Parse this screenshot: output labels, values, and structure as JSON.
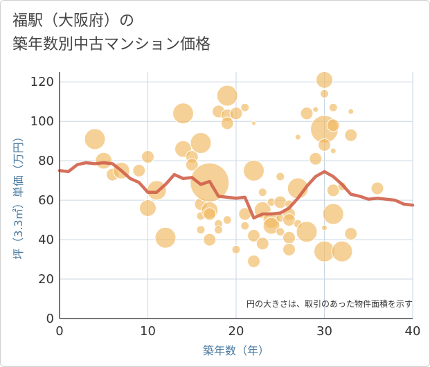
{
  "title_line1": "福駅（大阪府）の",
  "title_line2": "築年数別中古マンション価格",
  "chart_data": {
    "type": "scatter",
    "xlabel": "築年数（年）",
    "ylabel": "坪（3.3㎡）単価（万円）",
    "xlim": [
      0,
      40
    ],
    "ylim": [
      0,
      125
    ],
    "xticks": [
      0,
      10,
      20,
      30,
      40
    ],
    "yticks": [
      0,
      20,
      40,
      60,
      80,
      100,
      120
    ],
    "note": "円の大きさは、取引のあった物件面積を示す",
    "bubble_color": "#f0b860",
    "line_color": "#d0614a",
    "grid": true,
    "bubbles": [
      {
        "x": 4,
        "y": 91,
        "s": 15
      },
      {
        "x": 5,
        "y": 80,
        "s": 12
      },
      {
        "x": 6,
        "y": 73,
        "s": 9
      },
      {
        "x": 7,
        "y": 75,
        "s": 12
      },
      {
        "x": 9,
        "y": 75,
        "s": 9
      },
      {
        "x": 10,
        "y": 82,
        "s": 9
      },
      {
        "x": 10,
        "y": 56,
        "s": 12
      },
      {
        "x": 11,
        "y": 65,
        "s": 14
      },
      {
        "x": 12,
        "y": 41,
        "s": 15
      },
      {
        "x": 14,
        "y": 104,
        "s": 15
      },
      {
        "x": 14,
        "y": 86,
        "s": 12
      },
      {
        "x": 15,
        "y": 82,
        "s": 9
      },
      {
        "x": 15,
        "y": 78,
        "s": 9
      },
      {
        "x": 16,
        "y": 89,
        "s": 15
      },
      {
        "x": 16,
        "y": 58,
        "s": 9
      },
      {
        "x": 16,
        "y": 52,
        "s": 6
      },
      {
        "x": 16,
        "y": 45,
        "s": 6
      },
      {
        "x": 17,
        "y": 69,
        "s": 28
      },
      {
        "x": 17,
        "y": 55,
        "s": 12
      },
      {
        "x": 17,
        "y": 53,
        "s": 9
      },
      {
        "x": 17,
        "y": 40,
        "s": 9
      },
      {
        "x": 18,
        "y": 105,
        "s": 9
      },
      {
        "x": 18,
        "y": 48,
        "s": 6
      },
      {
        "x": 18,
        "y": 45,
        "s": 6
      },
      {
        "x": 19,
        "y": 113,
        "s": 15
      },
      {
        "x": 19,
        "y": 103,
        "s": 9
      },
      {
        "x": 19,
        "y": 99,
        "s": 9
      },
      {
        "x": 19,
        "y": 50,
        "s": 6
      },
      {
        "x": 20,
        "y": 104,
        "s": 9
      },
      {
        "x": 20,
        "y": 35,
        "s": 6
      },
      {
        "x": 21,
        "y": 107,
        "s": 6
      },
      {
        "x": 21,
        "y": 53,
        "s": 9
      },
      {
        "x": 21,
        "y": 47,
        "s": 6
      },
      {
        "x": 22,
        "y": 75,
        "s": 15
      },
      {
        "x": 22,
        "y": 99,
        "s": 3
      },
      {
        "x": 22,
        "y": 42,
        "s": 9
      },
      {
        "x": 22,
        "y": 29,
        "s": 9
      },
      {
        "x": 23,
        "y": 64,
        "s": 6
      },
      {
        "x": 23,
        "y": 55,
        "s": 12
      },
      {
        "x": 23,
        "y": 38,
        "s": 9
      },
      {
        "x": 24,
        "y": 59,
        "s": 6
      },
      {
        "x": 24,
        "y": 50,
        "s": 12
      },
      {
        "x": 24,
        "y": 47,
        "s": 12
      },
      {
        "x": 25,
        "y": 72,
        "s": 6
      },
      {
        "x": 25,
        "y": 59,
        "s": 9
      },
      {
        "x": 25,
        "y": 51,
        "s": 6
      },
      {
        "x": 25,
        "y": 44,
        "s": 6
      },
      {
        "x": 26,
        "y": 58,
        "s": 6
      },
      {
        "x": 26,
        "y": 53,
        "s": 9
      },
      {
        "x": 26,
        "y": 50,
        "s": 9
      },
      {
        "x": 26,
        "y": 41,
        "s": 9
      },
      {
        "x": 26,
        "y": 35,
        "s": 9
      },
      {
        "x": 27,
        "y": 66,
        "s": 15
      },
      {
        "x": 27,
        "y": 92,
        "s": 4
      },
      {
        "x": 27,
        "y": 48,
        "s": 6
      },
      {
        "x": 28,
        "y": 104,
        "s": 9
      },
      {
        "x": 28,
        "y": 44,
        "s": 15
      },
      {
        "x": 29,
        "y": 106,
        "s": 4
      },
      {
        "x": 29,
        "y": 81,
        "s": 9
      },
      {
        "x": 30,
        "y": 121,
        "s": 12
      },
      {
        "x": 30,
        "y": 96,
        "s": 20
      },
      {
        "x": 30,
        "y": 88,
        "s": 9
      },
      {
        "x": 30,
        "y": 114,
        "s": 6
      },
      {
        "x": 30,
        "y": 46,
        "s": 4
      },
      {
        "x": 30,
        "y": 34,
        "s": 15
      },
      {
        "x": 31,
        "y": 107,
        "s": 6
      },
      {
        "x": 31,
        "y": 98,
        "s": 9
      },
      {
        "x": 31,
        "y": 85,
        "s": 4
      },
      {
        "x": 31,
        "y": 65,
        "s": 9
      },
      {
        "x": 31,
        "y": 53,
        "s": 15
      },
      {
        "x": 32,
        "y": 67,
        "s": 6
      },
      {
        "x": 32,
        "y": 34,
        "s": 15
      },
      {
        "x": 33,
        "y": 105,
        "s": 4
      },
      {
        "x": 33,
        "y": 93,
        "s": 9
      },
      {
        "x": 33,
        "y": 43,
        "s": 9
      },
      {
        "x": 36,
        "y": 66,
        "s": 9
      }
    ],
    "series": [
      {
        "x": [
          0,
          1,
          2,
          3,
          4,
          5,
          6,
          7,
          8,
          9,
          10,
          11,
          12,
          13,
          14,
          15,
          16,
          17,
          18,
          19,
          20,
          21,
          22,
          23,
          24,
          25,
          26,
          27,
          28,
          29,
          30,
          31,
          32,
          33,
          34,
          35,
          36,
          37,
          38,
          39,
          40
        ],
        "y": [
          75,
          74.5,
          78,
          79,
          78.5,
          79,
          78.5,
          75,
          71,
          69,
          64,
          64,
          68,
          73,
          71,
          71.5,
          68,
          69.5,
          62,
          61.5,
          61,
          61.5,
          51,
          53,
          53,
          53.5,
          56,
          61,
          67,
          72,
          74.5,
          72,
          68,
          63,
          62,
          60.5,
          61,
          60.5,
          60,
          58,
          57.5
        ]
      }
    ]
  }
}
